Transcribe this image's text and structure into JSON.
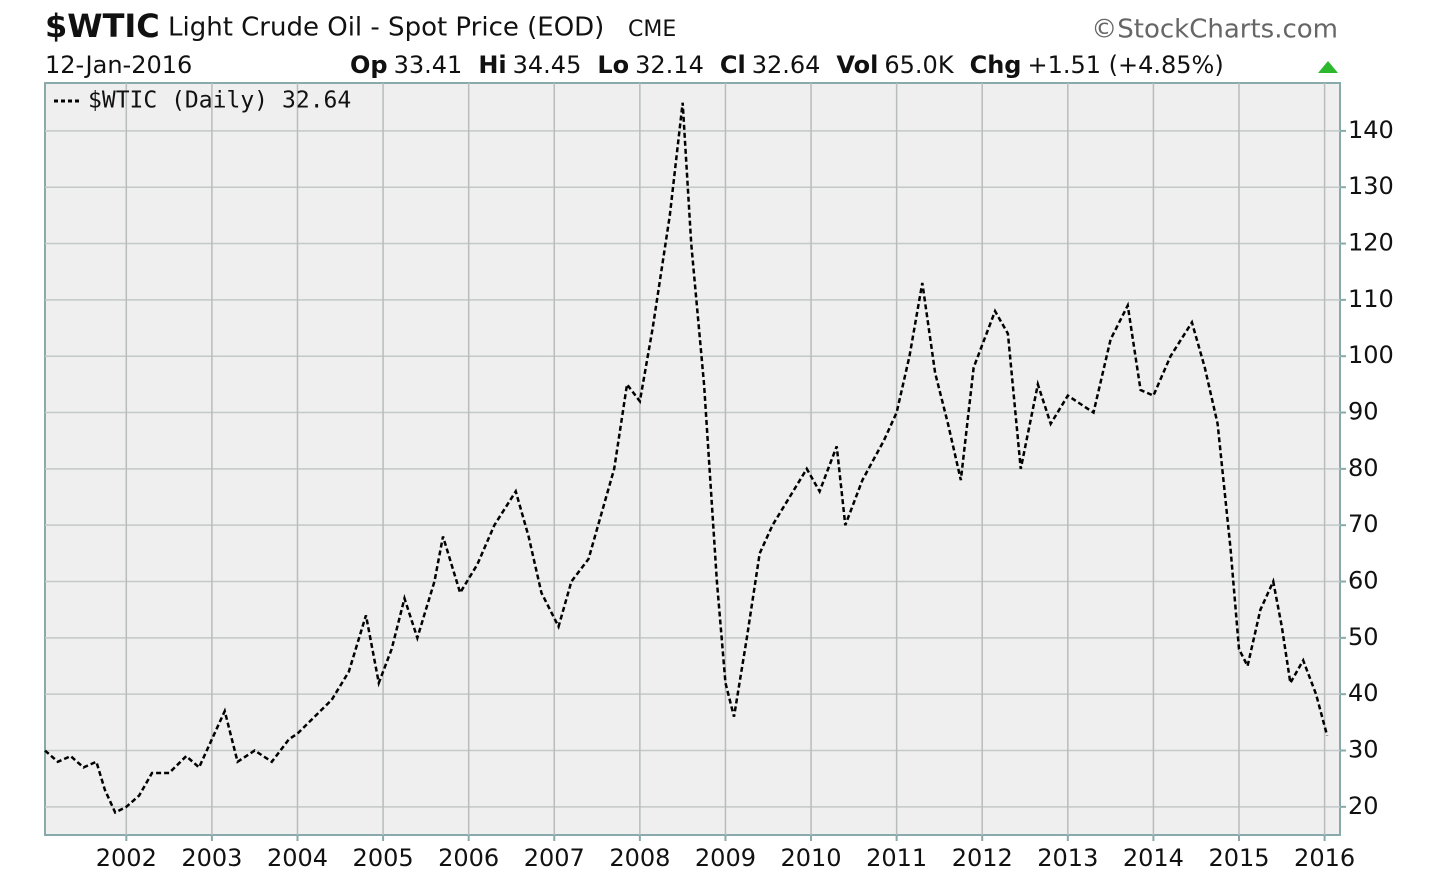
{
  "chart_data": {
    "type": "line",
    "symbol": "$WTIC",
    "title": "Light Crude Oil - Spot Price (EOD)",
    "exchange": "CME",
    "credit": "©StockCharts.com",
    "date": "12-Jan-2016",
    "stats": [
      {
        "label": "Op",
        "value": 33.41
      },
      {
        "label": "Hi",
        "value": 34.45
      },
      {
        "label": "Lo",
        "value": 32.14
      },
      {
        "label": "Cl",
        "value": 32.64
      },
      {
        "label": "Vol",
        "value": "65.0K"
      },
      {
        "label": "Chg",
        "value": "+1.51 (+4.85%)"
      }
    ],
    "x": [
      2001.05,
      2001.2,
      2001.35,
      2001.5,
      2001.65,
      2001.75,
      2001.87,
      2002.0,
      2002.15,
      2002.3,
      2002.5,
      2002.7,
      2002.85,
      2003.0,
      2003.15,
      2003.3,
      2003.5,
      2003.7,
      2003.9,
      2004.0,
      2004.2,
      2004.4,
      2004.6,
      2004.8,
      2004.95,
      2005.1,
      2005.25,
      2005.4,
      2005.6,
      2005.7,
      2005.9,
      2006.1,
      2006.3,
      2006.55,
      2006.7,
      2006.85,
      2007.05,
      2007.2,
      2007.4,
      2007.55,
      2007.7,
      2007.85,
      2008.0,
      2008.15,
      2008.35,
      2008.5,
      2008.6,
      2008.75,
      2008.9,
      2009.0,
      2009.1,
      2009.25,
      2009.4,
      2009.55,
      2009.75,
      2009.95,
      2010.1,
      2010.3,
      2010.4,
      2010.6,
      2010.85,
      2011.0,
      2011.15,
      2011.3,
      2011.45,
      2011.6,
      2011.75,
      2011.9,
      2012.15,
      2012.3,
      2012.45,
      2012.65,
      2012.8,
      2013.0,
      2013.3,
      2013.5,
      2013.7,
      2013.85,
      2014.0,
      2014.2,
      2014.45,
      2014.6,
      2014.75,
      2014.9,
      2015.0,
      2015.1,
      2015.25,
      2015.4,
      2015.5,
      2015.6,
      2015.75,
      2015.9,
      2016.03
    ],
    "series": [
      {
        "name": "$WTIC (Daily)",
        "color": "#000000",
        "values": [
          30,
          28,
          29,
          27,
          28,
          23,
          19,
          20,
          22,
          26,
          26,
          29,
          27,
          32,
          37,
          28,
          30,
          28,
          32,
          33,
          36,
          39,
          44,
          54,
          42,
          48,
          57,
          50,
          60,
          68,
          58,
          63,
          70,
          76,
          68,
          58,
          52,
          60,
          64,
          72,
          80,
          95,
          92,
          105,
          125,
          145,
          120,
          95,
          60,
          42,
          36,
          50,
          65,
          70,
          75,
          80,
          76,
          84,
          70,
          78,
          85,
          90,
          100,
          113,
          97,
          88,
          78,
          98,
          108,
          104,
          80,
          95,
          88,
          93,
          90,
          103,
          109,
          94,
          93,
          100,
          106,
          98,
          88,
          66,
          48,
          45,
          55,
          60,
          52,
          42,
          46,
          40,
          32.64
        ]
      }
    ],
    "xlim": [
      2001.05,
      2016.18
    ],
    "xticks": [
      2002,
      2003,
      2004,
      2005,
      2006,
      2007,
      2008,
      2009,
      2010,
      2011,
      2012,
      2013,
      2014,
      2015,
      2016
    ],
    "ylim": [
      15,
      148.5
    ],
    "yticks": [
      20,
      30,
      40,
      50,
      60,
      70,
      80,
      90,
      100,
      110,
      120,
      130,
      140
    ],
    "grid": true
  }
}
